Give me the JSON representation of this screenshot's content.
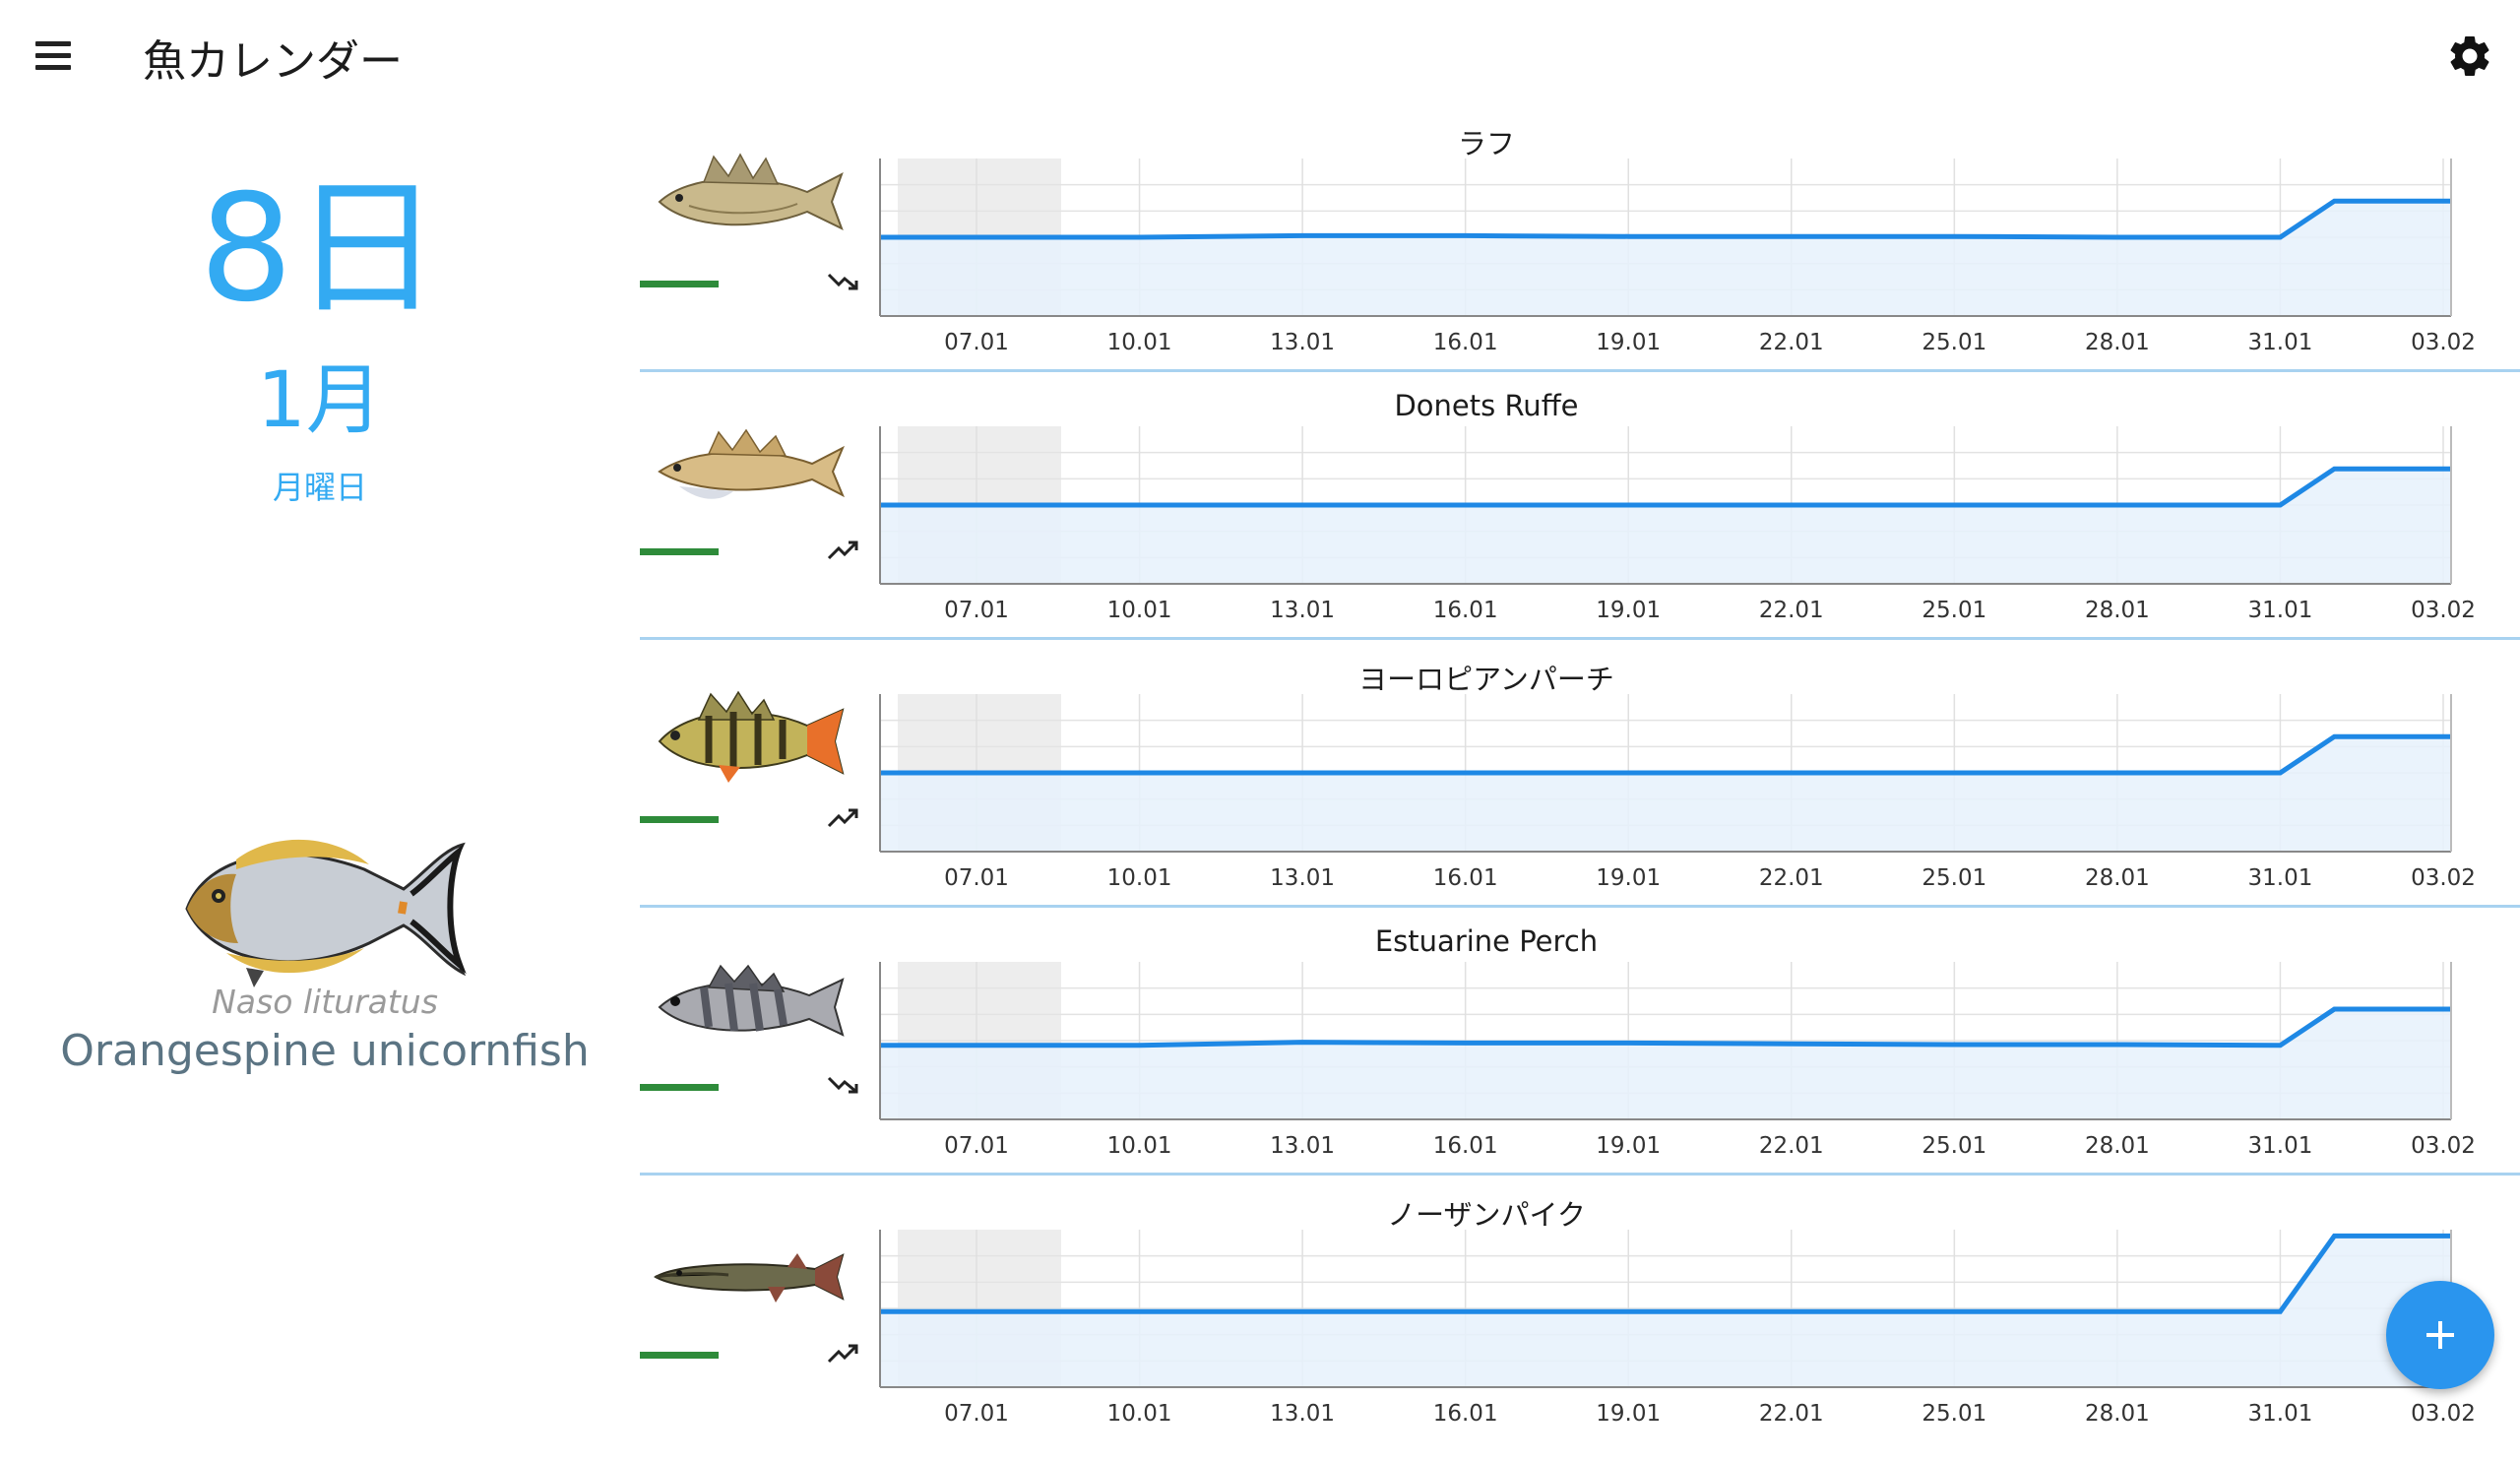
{
  "app": {
    "title": "魚カレンダー"
  },
  "date": {
    "day": "8日",
    "month": "1月",
    "weekday": "月曜日"
  },
  "featured_fish": {
    "scientific_name": "Naso lituratus",
    "common_name": "Orangespine unicornfish"
  },
  "colors": {
    "accent": "#33aaf2",
    "line": "#1e88e5",
    "fill": "#e6f1fb",
    "bar": "#2e8b3a",
    "divider": "#a8d2f0",
    "fab": "#2a95ee"
  },
  "icons": {
    "menu": "menu-icon",
    "settings": "gear-icon",
    "fab": "plus-icon"
  },
  "chart_data": [
    {
      "type": "area",
      "title": "ラフ",
      "trend_icon": "trending-down-icon",
      "x": [
        "07.01",
        "10.01",
        "13.01",
        "16.01",
        "19.01",
        "22.01",
        "25.01",
        "28.01",
        "31.01",
        "03.02"
      ],
      "series": [
        {
          "values": [
            50,
            50,
            51,
            51,
            50.5,
            50.5,
            50.5,
            50,
            50,
            73
          ]
        }
      ],
      "ylim": [
        0,
        100
      ],
      "grid": true
    },
    {
      "type": "area",
      "title": "Donets Ruffe",
      "trend_icon": "trending-up-icon",
      "x": [
        "07.01",
        "10.01",
        "13.01",
        "16.01",
        "19.01",
        "22.01",
        "25.01",
        "28.01",
        "31.01",
        "03.02"
      ],
      "series": [
        {
          "values": [
            50,
            50,
            50,
            50,
            50,
            50,
            50,
            50,
            50,
            73
          ]
        }
      ],
      "ylim": [
        0,
        100
      ],
      "grid": true
    },
    {
      "type": "area",
      "title": "ヨーロピアンパーチ",
      "trend_icon": "trending-up-icon",
      "x": [
        "07.01",
        "10.01",
        "13.01",
        "16.01",
        "19.01",
        "22.01",
        "25.01",
        "28.01",
        "31.01",
        "03.02"
      ],
      "series": [
        {
          "values": [
            50,
            50,
            50,
            50,
            50,
            50,
            50,
            50,
            50,
            73
          ]
        }
      ],
      "ylim": [
        0,
        100
      ],
      "grid": true
    },
    {
      "type": "area",
      "title": "Estuarine Perch",
      "trend_icon": "trending-down-icon",
      "x": [
        "07.01",
        "10.01",
        "13.01",
        "16.01",
        "19.01",
        "22.01",
        "25.01",
        "28.01",
        "31.01",
        "03.02"
      ],
      "series": [
        {
          "values": [
            47,
            47,
            49,
            48.5,
            48.5,
            48,
            47.5,
            47.5,
            47,
            70
          ]
        }
      ],
      "ylim": [
        0,
        100
      ],
      "grid": true
    },
    {
      "type": "area",
      "title": "ノーザンパイク",
      "trend_icon": "trending-up-icon",
      "x": [
        "07.01",
        "10.01",
        "13.01",
        "16.01",
        "19.01",
        "22.01",
        "25.01",
        "28.01",
        "31.01",
        "03.02"
      ],
      "series": [
        {
          "values": [
            48,
            48,
            48,
            48,
            48,
            48,
            48,
            48,
            48,
            96
          ]
        }
      ],
      "ylim": [
        0,
        100
      ],
      "grid": true
    }
  ]
}
